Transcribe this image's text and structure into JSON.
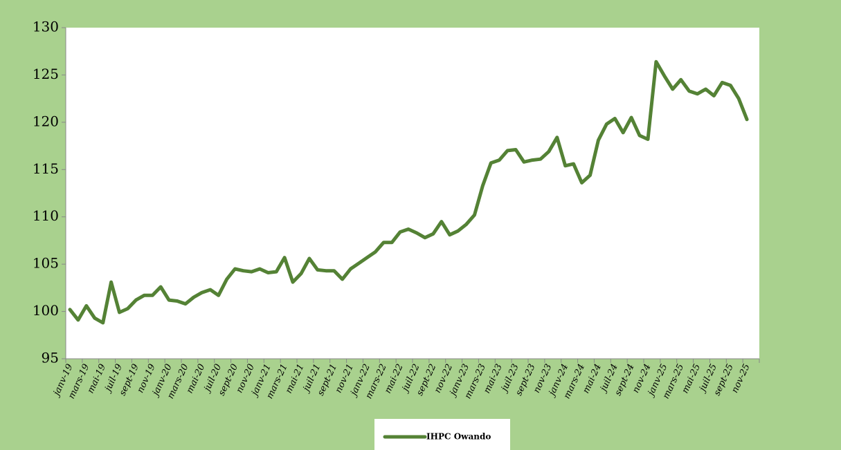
{
  "chart_data": {
    "type": "line",
    "categories": [
      "janv-19",
      null,
      "mars-19",
      null,
      "mai-19",
      null,
      "juil-19",
      null,
      "sept-19",
      null,
      "nov-19",
      null,
      "janv-20",
      null,
      "mars-20",
      null,
      "mai-20",
      null,
      "juil-20",
      null,
      "sept-20",
      null,
      "nov-20",
      null,
      "janv-21",
      null,
      "mars-21",
      null,
      "mai-21",
      null,
      "juil-21",
      null,
      "sept-21",
      null,
      "nov-21",
      null,
      "janv-22",
      null,
      "mars-22",
      null,
      "mai-22",
      null,
      "juil-22",
      null,
      "sept-22",
      null,
      "nov-22",
      null,
      "janv-23",
      null,
      "mars-23",
      null,
      "mai-23",
      null,
      "juil-23",
      null,
      "sept-23",
      null,
      "nov-23",
      null,
      "janv-24",
      null,
      "mars-24",
      null,
      "mai-24",
      null,
      "juil-24",
      null,
      "sept-24",
      null,
      "nov-24",
      null,
      "janv-25",
      null,
      "mars-25",
      null,
      "mai-25",
      null,
      "juil-25",
      null,
      "sept-25",
      null,
      "nov-25",
      null
    ],
    "series": [
      {
        "name": "IHPC Owando",
        "color": "#548235",
        "values": [
          100.2,
          99.1,
          100.6,
          99.3,
          98.8,
          103.1,
          99.9,
          100.3,
          101.2,
          101.7,
          101.7,
          102.6,
          101.2,
          101.1,
          100.8,
          101.5,
          102.0,
          102.3,
          101.7,
          103.4,
          104.5,
          104.3,
          104.2,
          104.5,
          104.1,
          104.2,
          105.7,
          103.1,
          104.0,
          105.6,
          104.4,
          104.3,
          104.3,
          103.4,
          104.5,
          105.1,
          105.7,
          106.3,
          107.3,
          107.3,
          108.4,
          108.7,
          108.3,
          107.8,
          108.2,
          109.5,
          108.1,
          108.5,
          109.2,
          110.2,
          113.3,
          115.7,
          116.0,
          117.0,
          117.1,
          115.8,
          116.0,
          116.1,
          116.9,
          118.4,
          115.4,
          115.6,
          113.6,
          114.4,
          118.1,
          119.8,
          120.4,
          118.9,
          120.5,
          118.6,
          118.2,
          126.4,
          124.9,
          123.5,
          124.5,
          123.3,
          123.0,
          123.5,
          122.8,
          124.2,
          123.9,
          122.5,
          120.3,
          null
        ]
      }
    ],
    "ylim": [
      95,
      130
    ],
    "yticks": [
      95,
      100,
      105,
      110,
      115,
      120,
      125,
      130
    ],
    "legend": "bottom"
  }
}
